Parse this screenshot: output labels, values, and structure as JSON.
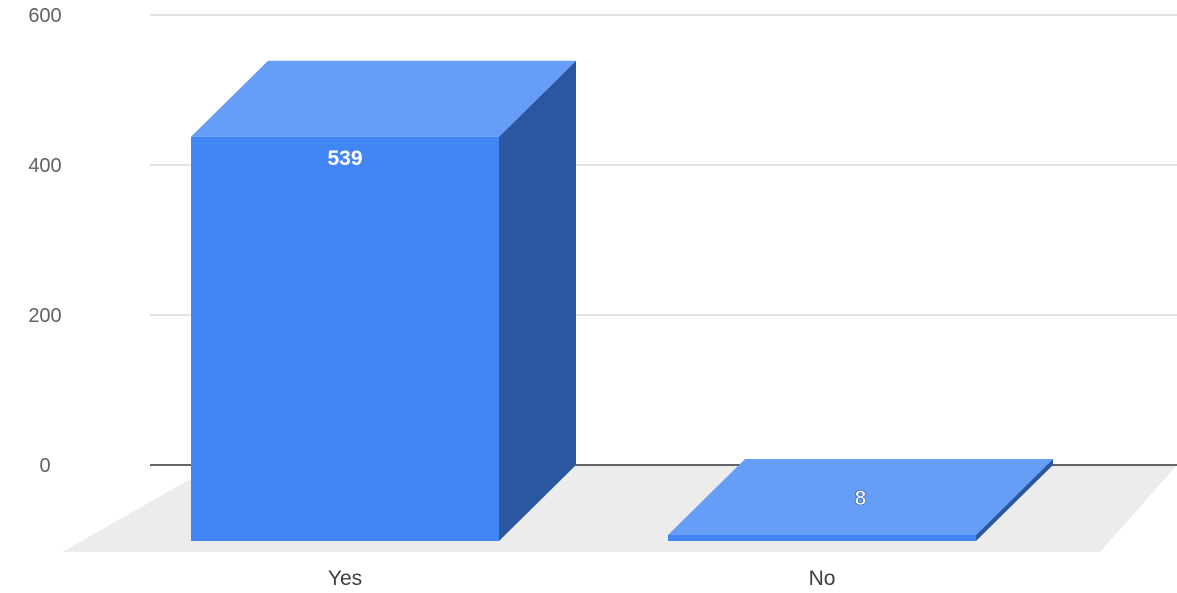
{
  "chart_data": {
    "type": "bar",
    "style": "3d",
    "categories": [
      "Yes",
      "No"
    ],
    "values": [
      539,
      8
    ],
    "data_labels": [
      "539",
      "8"
    ],
    "y_ticks": [
      "0",
      "200",
      "400",
      "600"
    ],
    "ylim": [
      0,
      600
    ],
    "grid": true,
    "legend": "none",
    "title": "",
    "xlabel": "",
    "ylabel": ""
  },
  "colors": {
    "front": "#4285f4",
    "top": "#669df6",
    "side": "#2b57a0",
    "floor": "#ececec",
    "grid": "#d0d0d0",
    "baseline": "#333333",
    "label_on_front": "#ffffff",
    "label_on_top": "#ffffff"
  }
}
